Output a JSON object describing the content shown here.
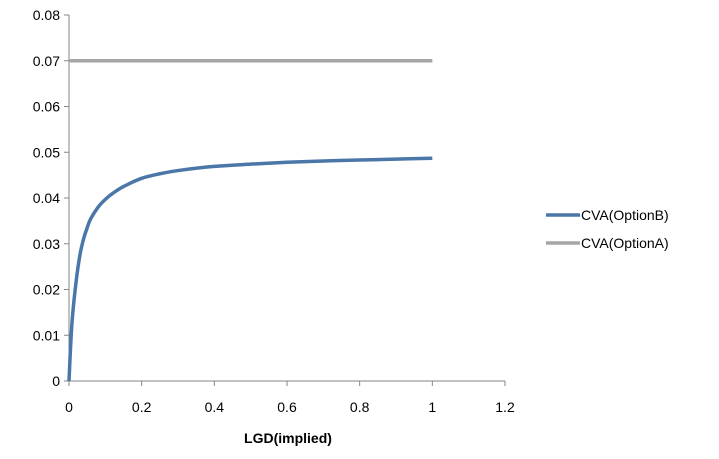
{
  "chart_data": {
    "type": "line",
    "title": "",
    "xlabel": "LGD(implied)",
    "ylabel": "",
    "xlim": [
      0,
      1.2
    ],
    "ylim": [
      0,
      0.08
    ],
    "x_ticks": [
      0,
      0.2,
      0.4,
      0.6,
      0.8,
      1,
      1.2
    ],
    "x_tick_labels": [
      "0",
      "0.2",
      "0.4",
      "0.6",
      "0.8",
      "1",
      "1.2"
    ],
    "y_ticks": [
      0,
      0.01,
      0.02,
      0.03,
      0.04,
      0.05,
      0.06,
      0.07,
      0.08
    ],
    "y_tick_labels": [
      "0",
      "0.01",
      "0.02",
      "0.03",
      "0.04",
      "0.05",
      "0.06",
      "0.07",
      "0.08"
    ],
    "grid": false,
    "legend_position": "right",
    "series": [
      {
        "name": "CVA(OptionB)",
        "color": "#4A77A8",
        "x": [
          0,
          0.005,
          0.01,
          0.02,
          0.03,
          0.04,
          0.05,
          0.06,
          0.08,
          0.1,
          0.12,
          0.15,
          0.2,
          0.25,
          0.3,
          0.4,
          0.5,
          0.6,
          0.7,
          0.8,
          0.9,
          1.0
        ],
        "y": [
          0,
          0.0085,
          0.0145,
          0.022,
          0.0275,
          0.031,
          0.0335,
          0.0355,
          0.038,
          0.0397,
          0.041,
          0.0425,
          0.0443,
          0.0453,
          0.046,
          0.0469,
          0.0474,
          0.0478,
          0.0481,
          0.0483,
          0.0485,
          0.0487
        ]
      },
      {
        "name": "CVA(OptionA)",
        "color": "#A6A6A6",
        "x": [
          0,
          1.0
        ],
        "y": [
          0.07,
          0.07
        ]
      }
    ]
  }
}
